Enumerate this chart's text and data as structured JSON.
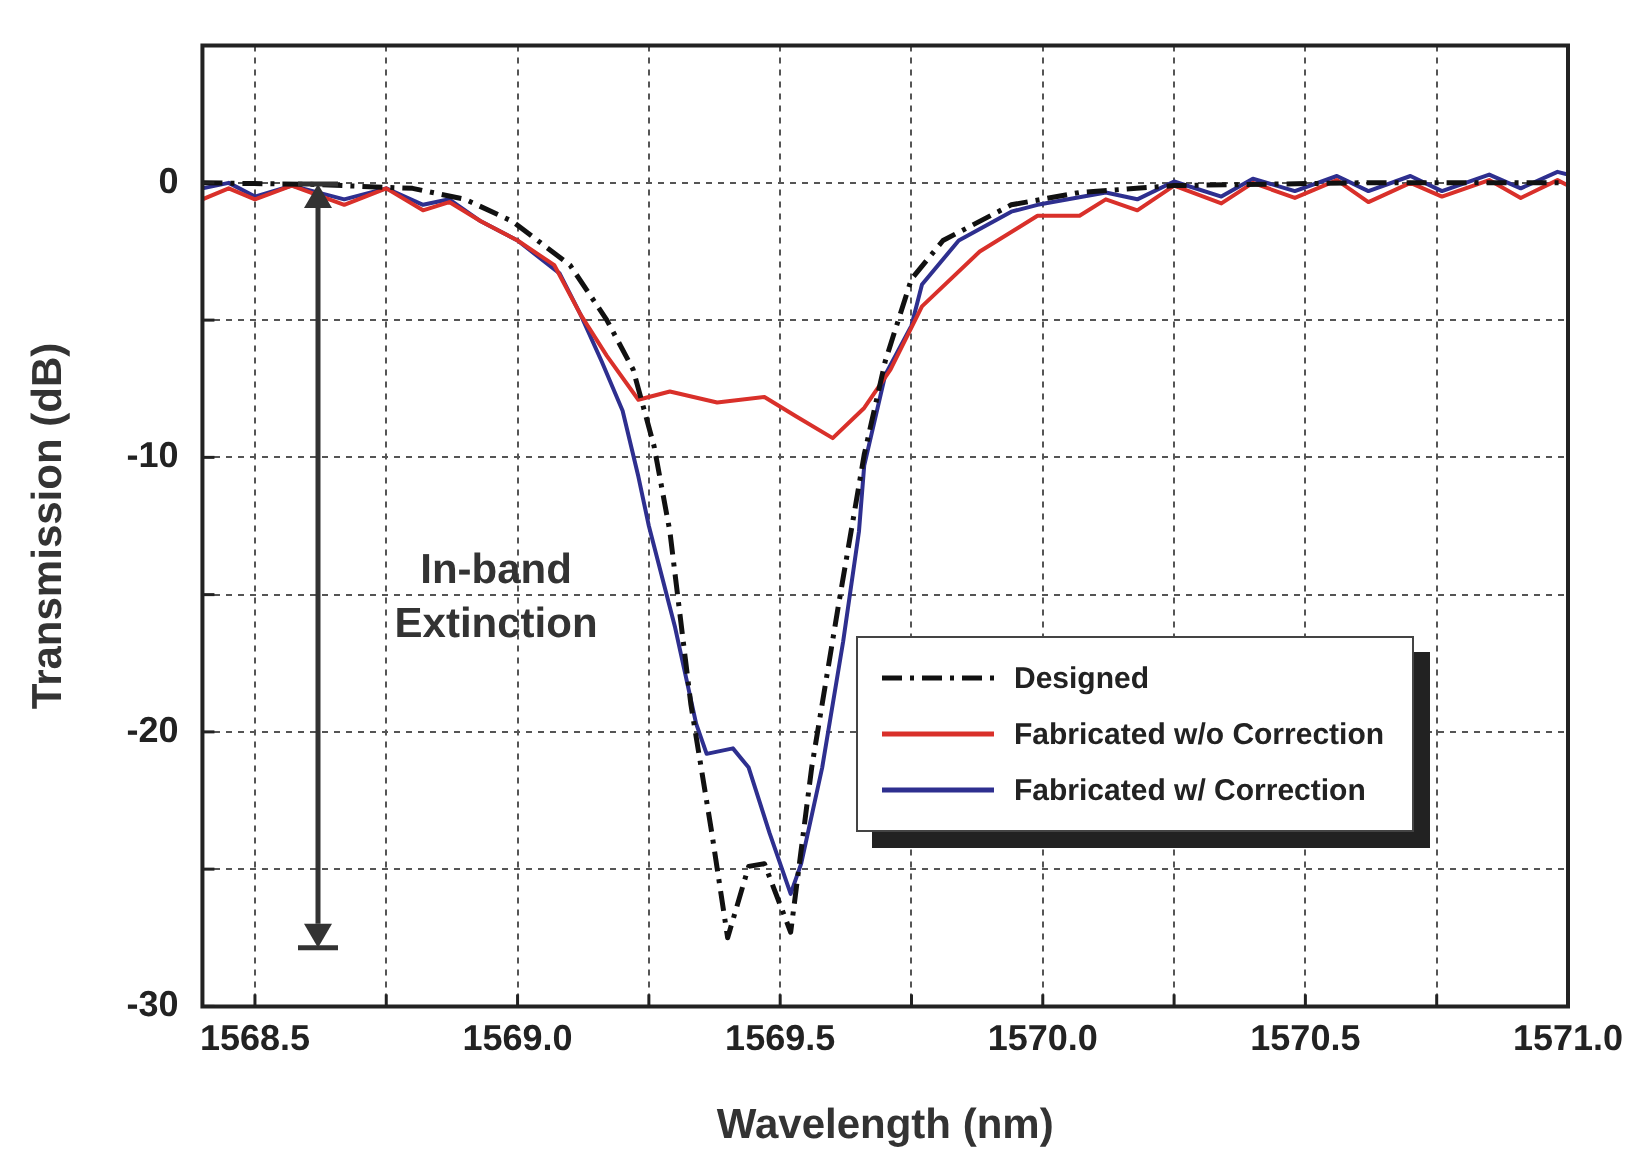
{
  "chart_data": {
    "type": "line",
    "xlabel": "Wavelength (nm)",
    "ylabel": "Transmission (dB)",
    "xlim": [
      1568.4,
      1571.0
    ],
    "xticks": [
      1568.5,
      {
        "value": 1568.75,
        "label": null
      },
      "1569.0",
      {
        "value": 1569.25,
        "label": null
      },
      1569.5,
      {
        "value": 1569.75,
        "label": null
      },
      {
        "value": 1570,
        "label": "1570.0"
      },
      {
        "value": 1570.25,
        "label": null
      },
      1570.5,
      {
        "value": 1570.75,
        "label": null
      },
      {
        "value": 1571,
        "label": "1571.0"
      }
    ],
    "ylim": [
      -30,
      5
    ],
    "yticks": [
      {
        "value": -30,
        "label": "-30"
      },
      {
        "value": -25,
        "label": null
      },
      {
        "value": -20,
        "label": "-20"
      },
      {
        "value": -15,
        "label": null
      },
      {
        "value": -10,
        "label": "-10"
      },
      {
        "value": -5,
        "label": null
      },
      0
    ],
    "grid": true,
    "legend": "bottom right",
    "marker": "none",
    "annotations": [
      "In-band Extinction"
    ],
    "series": [
      {
        "name": "Designed",
        "color": "#111111",
        "line_style": "dashed",
        "x": [
          1568.4,
          1568.6,
          1568.8,
          1568.9,
          1568.99,
          1569.1,
          1569.17,
          1569.22,
          1569.26,
          1569.29,
          1569.33,
          1569.37,
          1569.4,
          1569.44,
          1569.47,
          1569.52,
          1569.56,
          1569.61,
          1569.66,
          1569.7,
          1569.75,
          1569.81,
          1569.94,
          1570.07,
          1570.25,
          1570.6,
          1571.0
        ],
        "values": [
          0,
          -0.05,
          -0.2,
          -0.6,
          -1.4,
          -3.0,
          -5.0,
          -6.8,
          -9.6,
          -12.7,
          -19.0,
          -23.7,
          -27.5,
          -24.9,
          -24.8,
          -27.3,
          -21.3,
          -15.5,
          -9.9,
          -6.5,
          -3.5,
          -2.1,
          -0.8,
          -0.35,
          -0.1,
          0,
          0
        ]
      },
      {
        "name": "Fabricated w/o Correction",
        "color": "#d9302a",
        "line_style": "solid",
        "x": [
          1568.4,
          1568.45,
          1568.5,
          1568.57,
          1568.67,
          1568.75,
          1568.82,
          1568.87,
          1568.93,
          1569.0,
          1569.07,
          1569.12,
          1569.17,
          1569.23,
          1569.29,
          1569.38,
          1569.47,
          1569.53,
          1569.6,
          1569.66,
          1569.71,
          1569.77,
          1569.88,
          1569.99,
          1570.07,
          1570.12,
          1570.18,
          1570.25,
          1570.34,
          1570.4,
          1570.48,
          1570.56,
          1570.62,
          1570.7,
          1570.76,
          1570.85,
          1570.91,
          1570.98,
          1571.0
        ],
        "values": [
          -0.6,
          -0.2,
          -0.6,
          -0.1,
          -0.8,
          -0.2,
          -1.0,
          -0.7,
          -1.4,
          -2.1,
          -3.0,
          -4.8,
          -6.3,
          -7.9,
          -7.6,
          -8.0,
          -7.8,
          -8.5,
          -9.3,
          -8.2,
          -6.8,
          -4.5,
          -2.5,
          -1.2,
          -1.2,
          -0.6,
          -1.0,
          -0.1,
          -0.75,
          0,
          -0.55,
          0.1,
          -0.7,
          0,
          -0.5,
          0.1,
          -0.55,
          0.1,
          -0.1
        ]
      },
      {
        "name": "Fabricated w/ Correction",
        "color": "#2e2f8f",
        "line_style": "solid",
        "x": [
          1568.4,
          1568.45,
          1568.5,
          1568.57,
          1568.67,
          1568.75,
          1568.82,
          1568.87,
          1568.93,
          1569.0,
          1569.08,
          1569.12,
          1569.16,
          1569.2,
          1569.23,
          1569.25,
          1569.3,
          1569.34,
          1569.36,
          1569.41,
          1569.44,
          1569.48,
          1569.52,
          1569.54,
          1569.58,
          1569.62,
          1569.65,
          1569.66,
          1569.7,
          1569.75,
          1569.77,
          1569.84,
          1569.94,
          1569.99,
          1570.12,
          1570.18,
          1570.25,
          1570.34,
          1570.4,
          1570.48,
          1570.56,
          1570.62,
          1570.7,
          1570.76,
          1570.85,
          1570.91,
          1570.98,
          1571.0
        ],
        "values": [
          -0.2,
          0,
          -0.5,
          -0.1,
          -0.6,
          -0.2,
          -0.8,
          -0.6,
          -1.4,
          -2.1,
          -3.3,
          -4.8,
          -6.5,
          -8.3,
          -10.7,
          -12.5,
          -16.2,
          -19.7,
          -20.8,
          -20.6,
          -21.3,
          -23.7,
          -25.9,
          -24.8,
          -21.3,
          -16.7,
          -12.7,
          -10.3,
          -7.0,
          -5.2,
          -3.7,
          -2.1,
          -1.05,
          -0.8,
          -0.35,
          -0.6,
          0.05,
          -0.5,
          0.15,
          -0.3,
          0.25,
          -0.3,
          0.25,
          -0.3,
          0.3,
          -0.2,
          0.4,
          0.3
        ]
      }
    ]
  }
}
